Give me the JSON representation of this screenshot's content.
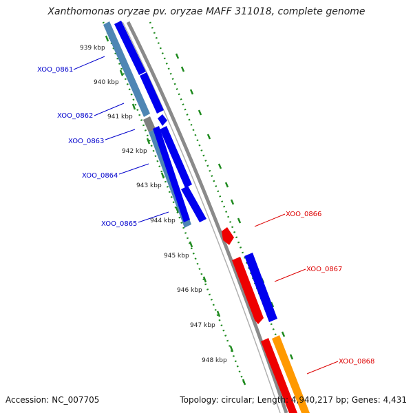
{
  "title": "Xanthomonas oryzae pv. oryzae MAFF 311018, complete genome",
  "accession_label": "Accession: NC_007705",
  "summary_label": "Topology: circular; Length: 4,940,217 bp; Genes: 4,431",
  "colors": {
    "backbone": "#8a8a8a",
    "tick": "#1e8a1e",
    "cds": "#0000ee",
    "gene": "#4e86b4",
    "pseudo": "#808080",
    "red_gene": "#ee0000",
    "orange_gene": "#ff9900",
    "left_label": "#0000cc",
    "right_label": "#dd0000",
    "scale_label": "#222222"
  },
  "scale": [
    "939 kbp",
    "940 kbp",
    "941 kbp",
    "942 kbp",
    "943 kbp",
    "944 kbp",
    "945 kbp",
    "946 kbp",
    "947 kbp",
    "948 kbp"
  ],
  "genes_left": [
    {
      "label": "XOO_0861"
    },
    {
      "label": "XOO_0862"
    },
    {
      "label": "XOO_0863"
    },
    {
      "label": "XOO_0864"
    },
    {
      "label": "XOO_0865"
    }
  ],
  "genes_right": [
    {
      "label": "XOO_0866"
    },
    {
      "label": "XOO_0867"
    },
    {
      "label": "XOO_0868"
    }
  ]
}
